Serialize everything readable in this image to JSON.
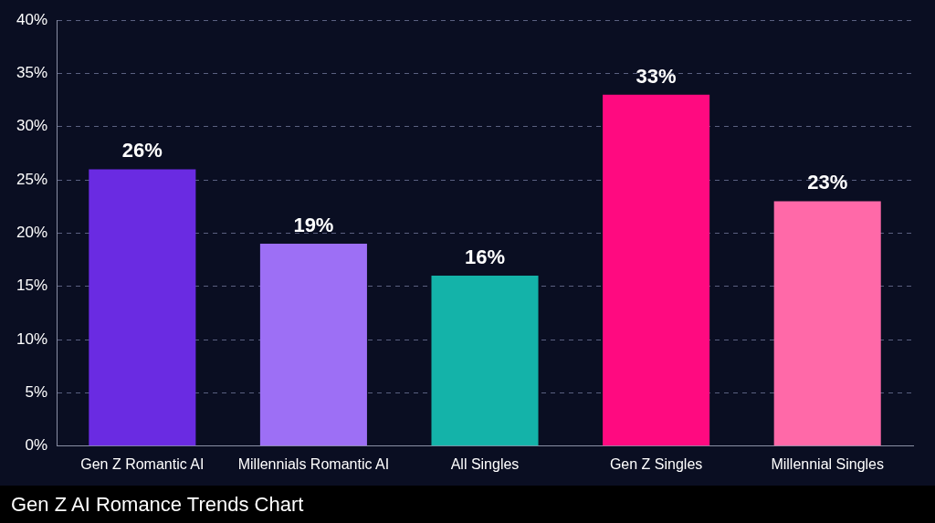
{
  "chart_data": {
    "type": "bar",
    "categories": [
      "Gen Z Romantic AI",
      "Millennials Romantic AI",
      "All Singles",
      "Gen Z Singles",
      "Millennial Singles"
    ],
    "values": [
      26,
      19,
      16,
      33,
      23
    ],
    "colors": [
      "#6a2be2",
      "#9d6ff5",
      "#14b3a9",
      "#ff0a80",
      "#ff69a8"
    ],
    "value_labels": [
      "26%",
      "19%",
      "16%",
      "33%",
      "23%"
    ],
    "ylim": [
      0,
      40
    ],
    "yticks": [
      {
        "value": 0,
        "label": "0%"
      },
      {
        "value": 5,
        "label": "5%"
      },
      {
        "value": 10,
        "label": "10%"
      },
      {
        "value": 15,
        "label": "15%"
      },
      {
        "value": 20,
        "label": "20%"
      },
      {
        "value": 25,
        "label": "25%"
      },
      {
        "value": 30,
        "label": "30%"
      },
      {
        "value": 35,
        "label": "35%"
      },
      {
        "value": 40,
        "label": "40%"
      }
    ],
    "grid": "y",
    "annotations": [
      "Gen Z AI Romance Trends Chart"
    ]
  }
}
